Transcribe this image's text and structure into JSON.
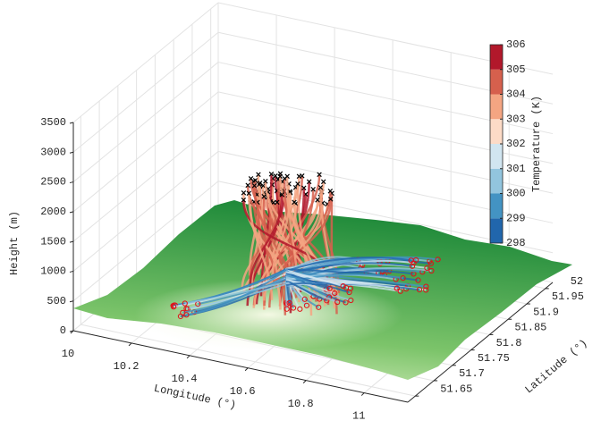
{
  "chart_data": {
    "type": "surface3d",
    "xlabel": "Longitude (°)",
    "ylabel": "Latitude (°)",
    "zlabel": "Height (m)",
    "xlim": [
      10,
      11.15
    ],
    "xticks": [
      10,
      10.2,
      10.4,
      10.6,
      10.8,
      11
    ],
    "ylim": [
      51.63,
      52.02
    ],
    "yticks": [
      51.65,
      51.7,
      51.75,
      51.8,
      51.85,
      51.9,
      51.95,
      52
    ],
    "zlim": [
      0,
      3500
    ],
    "zticks": [
      0,
      500,
      1000,
      1500,
      2000,
      2500,
      3000,
      3500
    ],
    "grid": true,
    "colorbar": {
      "label": "Temperature (K)",
      "ticks": [
        298,
        299,
        300,
        301,
        302,
        303,
        304,
        305,
        306
      ],
      "colors": [
        "#2166ac",
        "#4393c3",
        "#92c5de",
        "#d1e5f0",
        "#fddbc7",
        "#f4a582",
        "#d6604d",
        "#b2182b"
      ]
    }
  }
}
